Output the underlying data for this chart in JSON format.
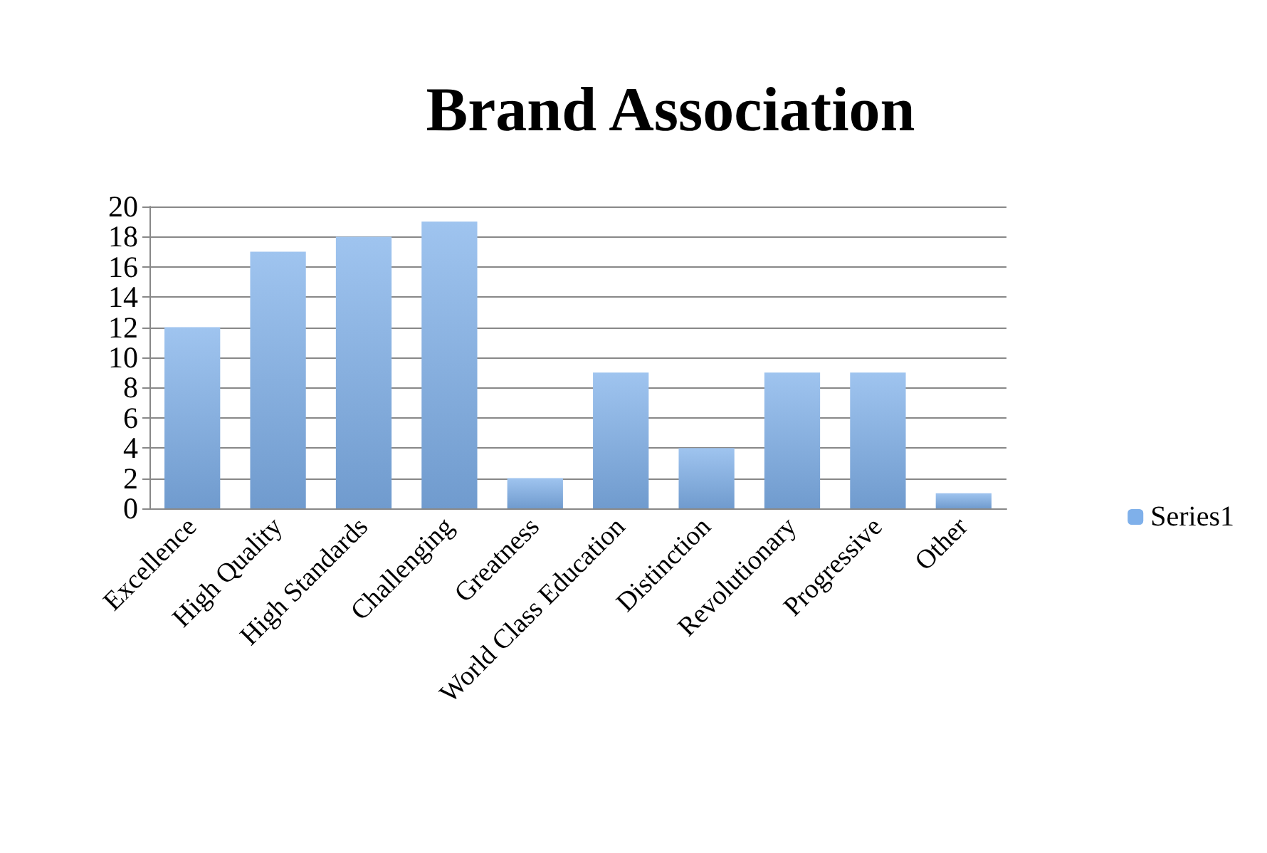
{
  "chart_data": {
    "type": "bar",
    "title": "Brand Association",
    "categories": [
      "Excellence",
      "High Quality",
      "High Standards",
      "Challenging",
      "Greatness",
      "World Class Education",
      "Distinction",
      "Revolutionary",
      "Progressive",
      "Other"
    ],
    "series": [
      {
        "name": "Series1",
        "color": "#7fb0ea",
        "values": [
          12,
          17,
          18,
          19,
          2,
          9,
          4,
          9,
          9,
          1
        ]
      }
    ],
    "ylim": [
      0,
      20
    ],
    "yticks": [
      0,
      2,
      4,
      6,
      8,
      10,
      12,
      14,
      16,
      18,
      20
    ],
    "grid": "y",
    "legend": "right"
  }
}
